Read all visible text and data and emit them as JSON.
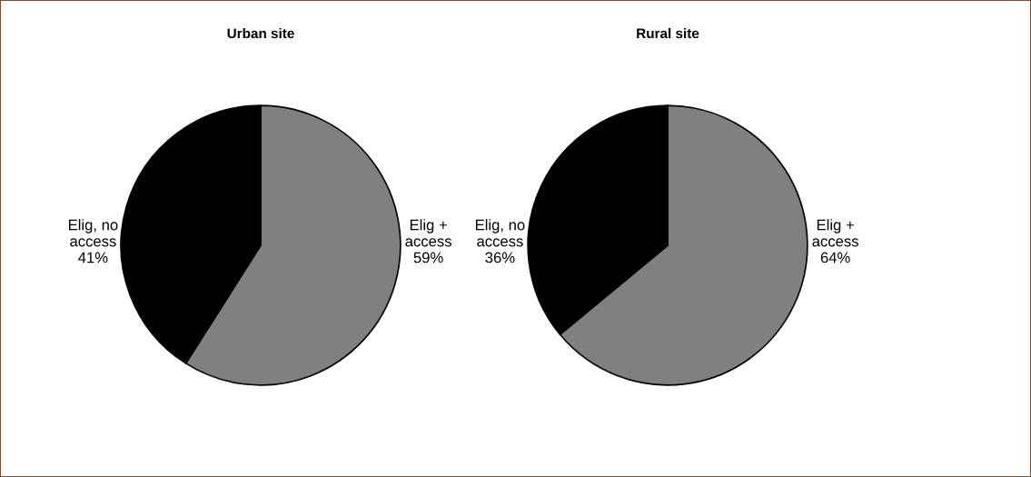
{
  "chart_data": [
    {
      "type": "pie",
      "title": "Urban site",
      "categories": [
        "Elig +\naccess",
        "Elig, no\naccess"
      ],
      "values": [
        59,
        41
      ],
      "colors": [
        "#808080",
        "#000000"
      ],
      "value_labels": [
        "59%",
        "41%"
      ]
    },
    {
      "type": "pie",
      "title": "Rural site",
      "categories": [
        "Elig +\naccess",
        "Elig, no\naccess"
      ],
      "values": [
        64,
        36
      ],
      "colors": [
        "#808080",
        "#000000"
      ],
      "value_labels": [
        "64%",
        "36%"
      ]
    }
  ]
}
